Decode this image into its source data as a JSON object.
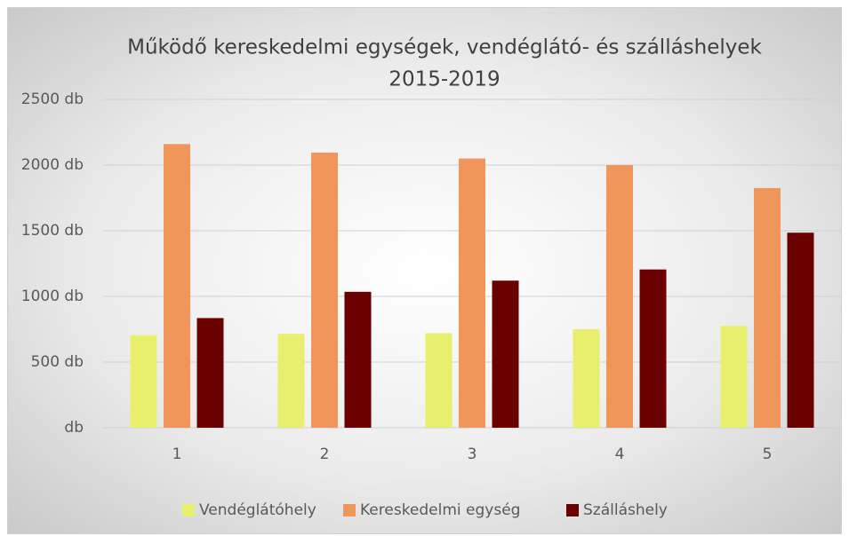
{
  "chart_data": {
    "type": "bar",
    "title": [
      "Működő kereskedelmi egységek, vendéglátó- és szálláshelyek",
      "2015-2019"
    ],
    "categories": [
      "1",
      "2",
      "3",
      "4",
      "5"
    ],
    "series": [
      {
        "name": "Vendéglátóhely",
        "color": "#e8ef6c",
        "values": [
          705,
          715,
          720,
          750,
          775
        ]
      },
      {
        "name": "Kereskedelmi egység",
        "color": "#f1965a",
        "values": [
          2160,
          2095,
          2050,
          2000,
          1825
        ]
      },
      {
        "name": "Szálláshely",
        "color": "#6b0000",
        "values": [
          835,
          1035,
          1120,
          1205,
          1485
        ]
      }
    ],
    "ylim": [
      0,
      2500
    ],
    "yticks": [
      {
        "value": 0,
        "label": "db"
      },
      {
        "value": 500,
        "label": "500 db"
      },
      {
        "value": 1000,
        "label": "1000 db"
      },
      {
        "value": 1500,
        "label": "1500 db"
      },
      {
        "value": 2000,
        "label": "2000 db"
      },
      {
        "value": 2500,
        "label": "2500 db"
      }
    ],
    "grid": true,
    "legend": "bottom"
  }
}
